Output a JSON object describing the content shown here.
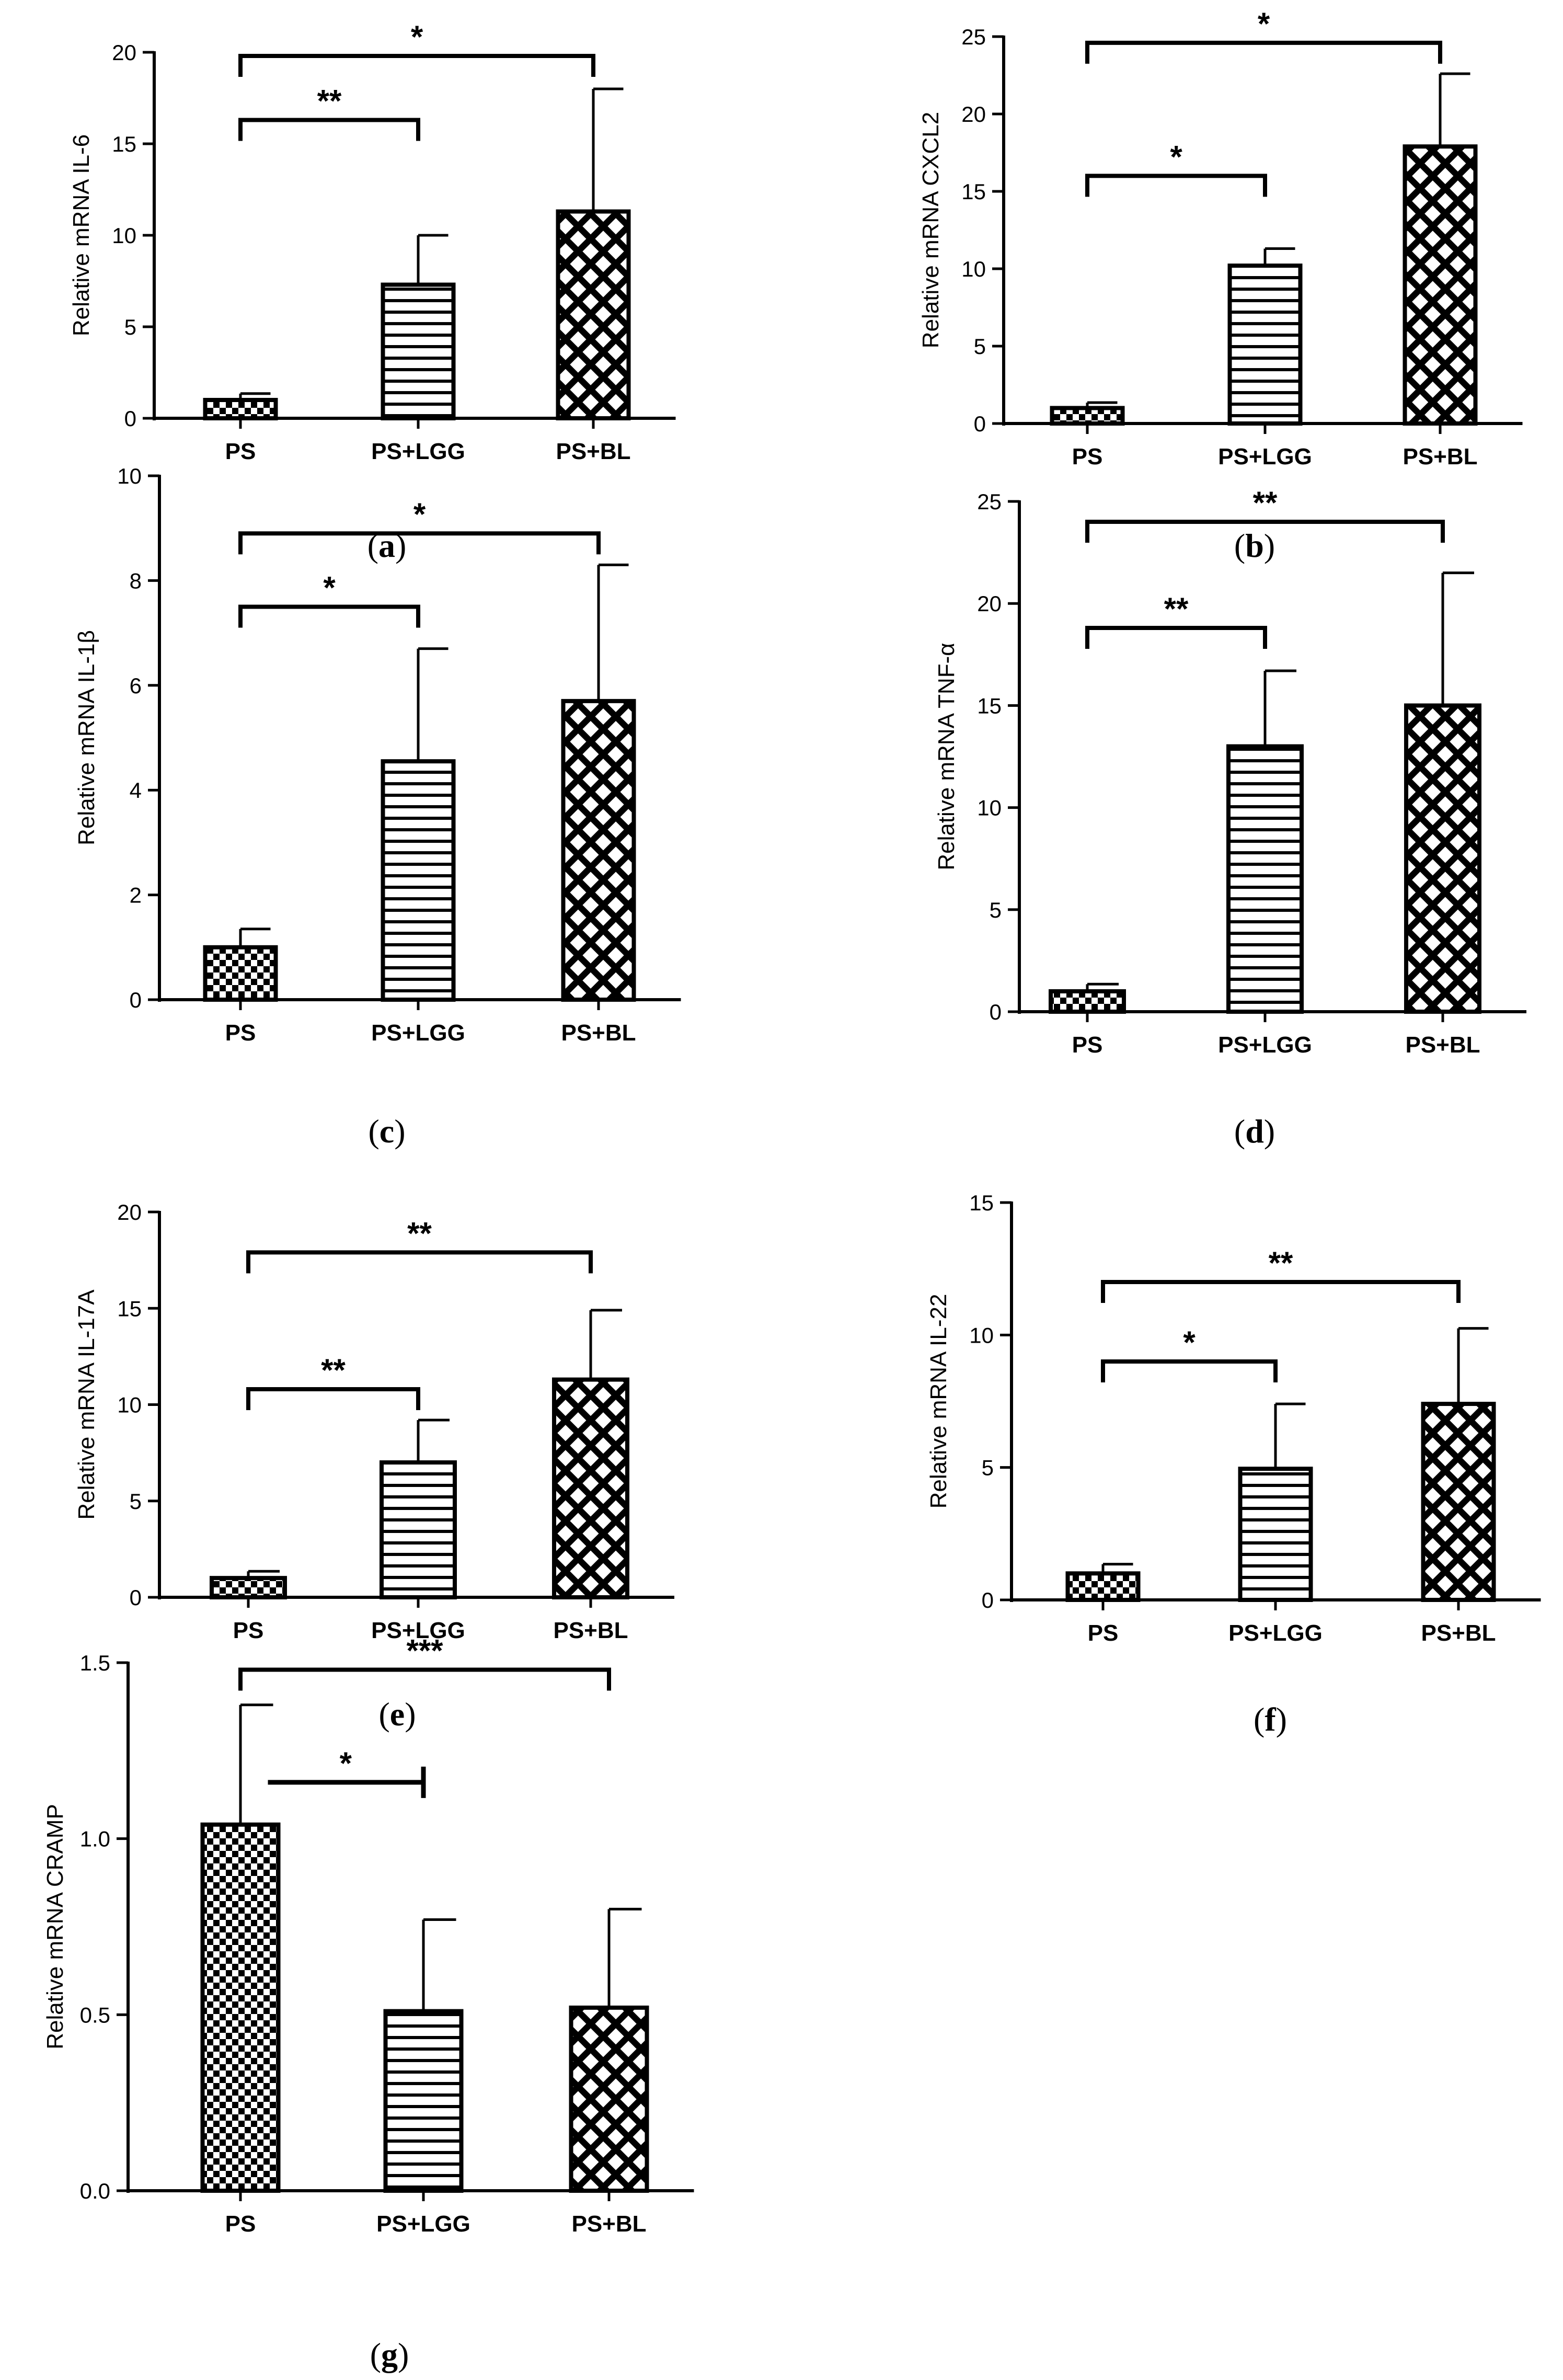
{
  "chart_data": [
    {
      "panel": "a",
      "type": "bar",
      "ylabel": "Relative mRNA IL-6",
      "categories": [
        "PS",
        "PS+LGG",
        "PS+BL"
      ],
      "values": [
        1.0,
        7.3,
        11.3
      ],
      "errors": [
        0.35,
        2.7,
        6.7
      ],
      "ylim": [
        0,
        20
      ],
      "yticks": [
        "0",
        "5",
        "10",
        "15",
        "20"
      ],
      "comparisons": [
        {
          "from": 0,
          "to": 1,
          "y": 16.3,
          "label": "**"
        },
        {
          "from": 0,
          "to": 2,
          "y": 19.8,
          "label": "*"
        }
      ]
    },
    {
      "panel": "b",
      "type": "bar",
      "ylabel": "Relative mRNA CXCL2",
      "categories": [
        "PS",
        "PS+LGG",
        "PS+BL"
      ],
      "values": [
        1.0,
        10.2,
        17.9
      ],
      "errors": [
        0.35,
        1.1,
        4.7
      ],
      "ylim": [
        0,
        25
      ],
      "yticks": [
        "0",
        "5",
        "10",
        "15",
        "20",
        "25"
      ],
      "comparisons": [
        {
          "from": 0,
          "to": 1,
          "y": 16.0,
          "label": "*"
        },
        {
          "from": 0,
          "to": 2,
          "y": 24.6,
          "label": "*"
        }
      ]
    },
    {
      "panel": "c",
      "type": "bar",
      "ylabel": "Relative mRNA IL-1β",
      "categories": [
        "PS",
        "PS+LGG",
        "PS+BL"
      ],
      "values": [
        1.0,
        4.55,
        5.7
      ],
      "errors": [
        0.35,
        2.15,
        2.6
      ],
      "ylim": [
        0,
        10
      ],
      "yticks": [
        "0",
        "2",
        "4",
        "6",
        "8",
        "10"
      ],
      "comparisons": [
        {
          "from": 0,
          "to": 1,
          "y": 7.5,
          "label": "*"
        },
        {
          "from": 0,
          "to": 2,
          "y": 8.9,
          "label": "*"
        }
      ]
    },
    {
      "panel": "d",
      "type": "bar",
      "ylabel": "Relative mRNA TNF-α",
      "categories": [
        "PS",
        "PS+LGG",
        "PS+BL"
      ],
      "values": [
        1.0,
        13.0,
        15.0
      ],
      "errors": [
        0.35,
        3.7,
        6.5
      ],
      "ylim": [
        0,
        25
      ],
      "yticks": [
        "0",
        "5",
        "10",
        "15",
        "20",
        "25"
      ],
      "comparisons": [
        {
          "from": 0,
          "to": 1,
          "y": 18.8,
          "label": "**"
        },
        {
          "from": 0,
          "to": 2,
          "y": 24.0,
          "label": "**"
        }
      ]
    },
    {
      "panel": "e",
      "type": "bar",
      "ylabel": "Relative mRNA IL-17A",
      "categories": [
        "PS",
        "PS+LGG",
        "PS+BL"
      ],
      "values": [
        1.0,
        7.0,
        11.3
      ],
      "errors": [
        0.35,
        2.2,
        3.6
      ],
      "ylim": [
        0,
        20
      ],
      "yticks": [
        "0",
        "5",
        "10",
        "15",
        "20"
      ],
      "comparisons": [
        {
          "from": 0,
          "to": 1,
          "y": 10.8,
          "label": "**"
        },
        {
          "from": 0,
          "to": 2,
          "y": 17.9,
          "label": "**"
        }
      ]
    },
    {
      "panel": "f",
      "type": "bar",
      "ylabel": "Relative mRNA IL-22",
      "categories": [
        "PS",
        "PS+LGG",
        "PS+BL"
      ],
      "values": [
        1.0,
        4.95,
        7.4
      ],
      "errors": [
        0.35,
        2.45,
        2.85
      ],
      "ylim": [
        0,
        15
      ],
      "yticks": [
        "0",
        "5",
        "10",
        "15"
      ],
      "comparisons": [
        {
          "from": 0,
          "to": 1,
          "y": 9.0,
          "label": "*"
        },
        {
          "from": 0,
          "to": 2,
          "y": 12.0,
          "label": "**"
        }
      ]
    },
    {
      "panel": "g",
      "type": "bar",
      "ylabel": "Relative mRNA CRAMP",
      "categories": [
        "PS",
        "PS+LGG",
        "PS+BL"
      ],
      "values": [
        1.04,
        0.51,
        0.52
      ],
      "errors": [
        0.34,
        0.26,
        0.28
      ],
      "ylim": [
        0,
        1.5
      ],
      "yticks": [
        "0.0",
        "0.5",
        "1.0",
        "1.5"
      ],
      "comparisons": [
        {
          "from": 0.15,
          "to": 1,
          "y": 1.16,
          "label": "*",
          "style": "flat"
        },
        {
          "from": 0,
          "to": 2,
          "y": 1.48,
          "label": "***"
        }
      ]
    }
  ],
  "captions": [
    "a",
    "b",
    "c",
    "d",
    "e",
    "f",
    "g"
  ]
}
